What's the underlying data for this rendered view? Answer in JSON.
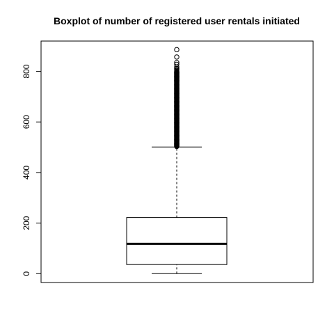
{
  "chart_data": {
    "type": "boxplot",
    "title": "Boxplot of number of registered user rentals initiated",
    "xlabel": "",
    "ylabel": "",
    "ylim": [
      -35,
      920
    ],
    "yticks": [
      0,
      200,
      400,
      600,
      800
    ],
    "grid": false,
    "box": {
      "min": 0,
      "q1": 36,
      "median": 118,
      "q3": 222,
      "whisker_upper": 501,
      "outliers_dense_range": [
        503,
        800
      ],
      "outliers": [
        804,
        808,
        812,
        818,
        828,
        835,
        857,
        886
      ]
    }
  }
}
